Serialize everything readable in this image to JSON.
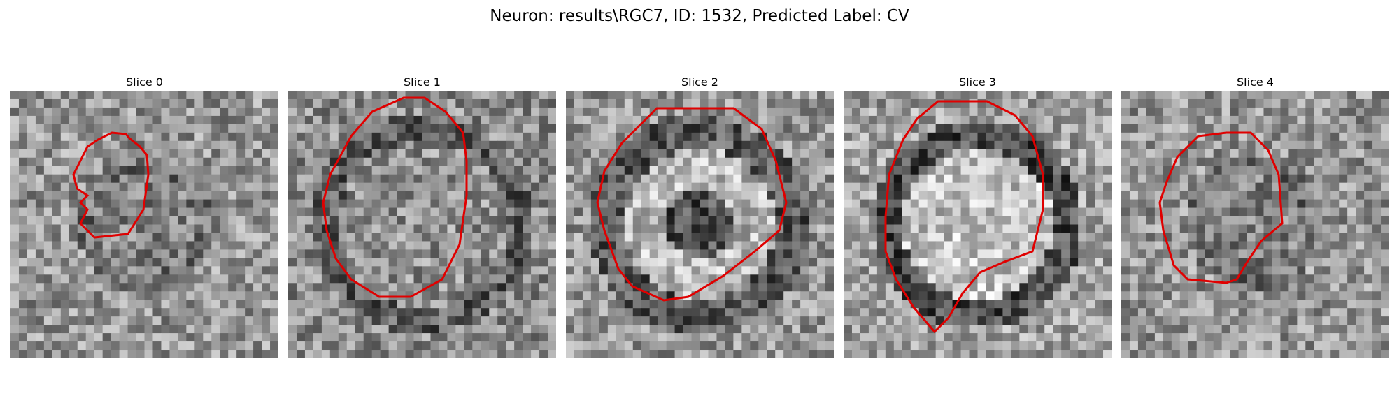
{
  "title": "Neuron: results\\RGC7, ID: 1532, Predicted Label: CV",
  "outline_color": "#e00000",
  "panels": [
    {
      "title": "Slice 0",
      "seed": 11,
      "pattern": "small"
    },
    {
      "title": "Slice 1",
      "seed": 23,
      "pattern": "large"
    },
    {
      "title": "Slice 2",
      "seed": 37,
      "pattern": "ring"
    },
    {
      "title": "Slice 3",
      "seed": 53,
      "pattern": "ring-bright"
    },
    {
      "title": "Slice 4",
      "seed": 71,
      "pattern": "small"
    }
  ]
}
